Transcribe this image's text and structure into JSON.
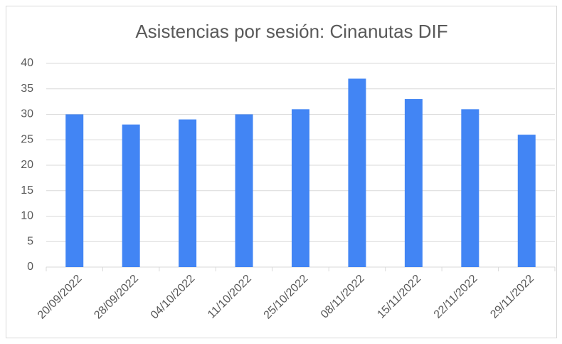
{
  "chart_data": {
    "type": "bar",
    "title": "Asistencias por sesión: Cinanutas DIF",
    "categories": [
      "20/09/2022",
      "28/09/2022",
      "04/10/2022",
      "11/10/2022",
      "25/10/2022",
      "08/11/2022",
      "15/11/2022",
      "22/11/2022",
      "29/11/2022"
    ],
    "values": [
      30,
      28,
      29,
      30,
      31,
      37,
      33,
      31,
      26
    ],
    "color": "#4285f4",
    "ylim": [
      0,
      40
    ],
    "yticks": [
      0,
      5,
      10,
      15,
      20,
      25,
      30,
      35,
      40
    ],
    "grid": true
  }
}
